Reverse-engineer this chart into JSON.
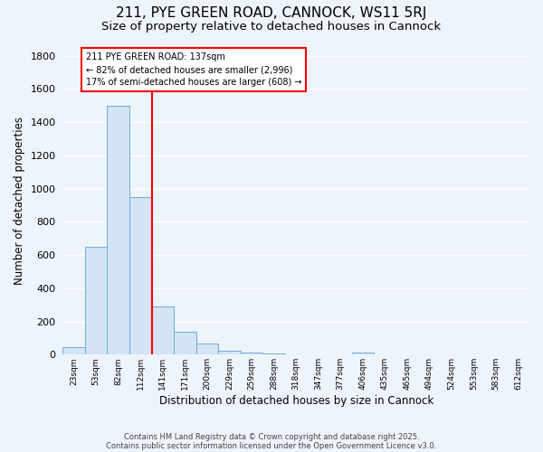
{
  "title_line1": "211, PYE GREEN ROAD, CANNOCK, WS11 5RJ",
  "title_line2": "Size of property relative to detached houses in Cannock",
  "xlabel": "Distribution of detached houses by size in Cannock",
  "ylabel": "Number of detached properties",
  "bar_labels": [
    "23sqm",
    "53sqm",
    "82sqm",
    "112sqm",
    "141sqm",
    "171sqm",
    "200sqm",
    "229sqm",
    "259sqm",
    "288sqm",
    "318sqm",
    "347sqm",
    "377sqm",
    "406sqm",
    "435sqm",
    "465sqm",
    "494sqm",
    "524sqm",
    "553sqm",
    "583sqm",
    "612sqm"
  ],
  "bar_values": [
    45,
    650,
    1500,
    950,
    290,
    140,
    65,
    25,
    10,
    5,
    3,
    2,
    1,
    10,
    0,
    0,
    0,
    0,
    0,
    0,
    0
  ],
  "bar_color": "#d4e4f4",
  "bar_edge_color": "#6baed6",
  "red_line_index": 4,
  "annotation_text": "211 PYE GREEN ROAD: 137sqm\n← 82% of detached houses are smaller (2,996)\n17% of semi-detached houses are larger (608) →",
  "annotation_box_facecolor": "white",
  "annotation_box_edgecolor": "red",
  "ylim_min": 0,
  "ylim_max": 1850,
  "yticks": [
    0,
    200,
    400,
    600,
    800,
    1000,
    1200,
    1400,
    1600,
    1800
  ],
  "fig_bg": "#eef4fb",
  "ax_bg": "#eef4fb",
  "grid_color": "#ffffff",
  "grid_lw": 1.0,
  "footer_line1": "Contains HM Land Registry data © Crown copyright and database right 2025.",
  "footer_line2": "Contains public sector information licensed under the Open Government Licence v3.0."
}
